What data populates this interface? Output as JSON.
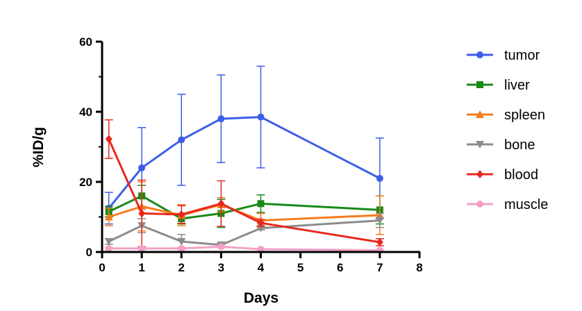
{
  "chart_data": {
    "type": "line",
    "title": "",
    "xlabel": "Days",
    "ylabel": "%ID/g",
    "xlim": [
      0,
      8
    ],
    "ylim": [
      0,
      60
    ],
    "x_ticks": [
      0,
      1,
      2,
      3,
      4,
      5,
      6,
      7,
      8
    ],
    "y_ticks": [
      0,
      20,
      40,
      60
    ],
    "grid": false,
    "legend_position": "right",
    "x": [
      0.17,
      1,
      2,
      3,
      4,
      7
    ],
    "series": [
      {
        "name": "tumor",
        "color": "#3b5ee8",
        "marker": "circle",
        "values": [
          12.5,
          24,
          32,
          38,
          38.5,
          21
        ],
        "errors": [
          4.5,
          11.5,
          13,
          12.5,
          14.5,
          11.5
        ]
      },
      {
        "name": "liver",
        "color": "#188a18",
        "marker": "square",
        "values": [
          11.5,
          16,
          9.5,
          11,
          13.8,
          12
        ],
        "errors": [
          1.5,
          3,
          1.5,
          4,
          2.5,
          4
        ]
      },
      {
        "name": "spleen",
        "color": "#f57c1f",
        "marker": "triangle-up",
        "values": [
          10,
          13,
          10.5,
          13.5,
          9,
          10.5
        ],
        "errors": [
          2.5,
          7,
          3,
          2,
          2,
          5.5
        ]
      },
      {
        "name": "bone",
        "color": "#8c8c8c",
        "marker": "triangle-down",
        "values": [
          3,
          7.5,
          3,
          2,
          6.8,
          9
        ],
        "errors": [
          0.8,
          2,
          2,
          0.5,
          0.5,
          2
        ]
      },
      {
        "name": "blood",
        "color": "#e8281e",
        "marker": "diamond",
        "values": [
          32.2,
          11,
          10.7,
          13.8,
          8.3,
          2.8
        ],
        "errors": [
          5.5,
          9.5,
          2.5,
          6.5,
          1,
          1
        ]
      },
      {
        "name": "muscle",
        "color": "#f2a2c6",
        "marker": "circle",
        "values": [
          1,
          1,
          1,
          1.5,
          0.8,
          0.5
        ],
        "errors": [
          0.3,
          0.3,
          0.3,
          0.3,
          0.2,
          0.2
        ]
      }
    ]
  }
}
